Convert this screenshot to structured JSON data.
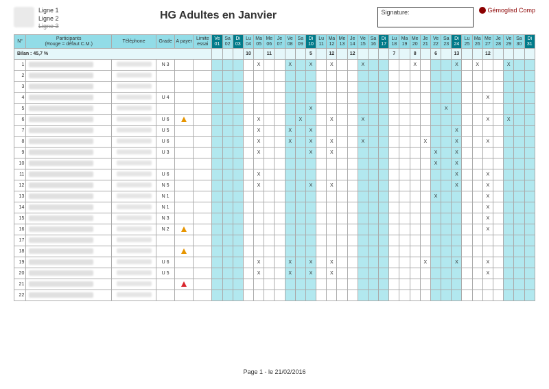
{
  "header": {
    "line1": "Ligne 1",
    "line2": "Ligne 2",
    "line3": "Ligne 3",
    "title": "HG Adultes en Janvier",
    "signature_label": "Signature:",
    "brand": "Gémoglisd Comp",
    "participant_label": "Participants",
    "legend": "(Rouge = défaut C.M.)"
  },
  "columns": {
    "num": "N°",
    "telephone": "Téléphone",
    "grade": "Grade",
    "a_payer": "A payer",
    "limite_essai": "Limite essai"
  },
  "days": [
    {
      "dow": "Ve",
      "num": "01",
      "dark": true
    },
    {
      "dow": "Sa",
      "num": "02",
      "dark": false
    },
    {
      "dow": "Di",
      "num": "03",
      "dark": true
    },
    {
      "dow": "Lu",
      "num": "04",
      "dark": false
    },
    {
      "dow": "Ma",
      "num": "05",
      "dark": false
    },
    {
      "dow": "Me",
      "num": "06",
      "dark": false
    },
    {
      "dow": "Je",
      "num": "07",
      "dark": false
    },
    {
      "dow": "Ve",
      "num": "08",
      "dark": false
    },
    {
      "dow": "Sa",
      "num": "09",
      "dark": false
    },
    {
      "dow": "Di",
      "num": "10",
      "dark": true
    },
    {
      "dow": "Lu",
      "num": "11",
      "dark": false
    },
    {
      "dow": "Ma",
      "num": "12",
      "dark": false
    },
    {
      "dow": "Me",
      "num": "13",
      "dark": false
    },
    {
      "dow": "Je",
      "num": "14",
      "dark": false
    },
    {
      "dow": "Ve",
      "num": "15",
      "dark": false
    },
    {
      "dow": "Sa",
      "num": "16",
      "dark": false
    },
    {
      "dow": "Di",
      "num": "17",
      "dark": true
    },
    {
      "dow": "Lu",
      "num": "18",
      "dark": false
    },
    {
      "dow": "Ma",
      "num": "19",
      "dark": false
    },
    {
      "dow": "Me",
      "num": "20",
      "dark": false
    },
    {
      "dow": "Je",
      "num": "21",
      "dark": false
    },
    {
      "dow": "Ve",
      "num": "22",
      "dark": false
    },
    {
      "dow": "Sa",
      "num": "23",
      "dark": false
    },
    {
      "dow": "Di",
      "num": "24",
      "dark": true
    },
    {
      "dow": "Lu",
      "num": "25",
      "dark": false
    },
    {
      "dow": "Ma",
      "num": "26",
      "dark": false
    },
    {
      "dow": "Me",
      "num": "27",
      "dark": false
    },
    {
      "dow": "Je",
      "num": "28",
      "dark": false
    },
    {
      "dow": "Ve",
      "num": "29",
      "dark": false
    },
    {
      "dow": "Sa",
      "num": "30",
      "dark": false
    },
    {
      "dow": "Di",
      "num": "31",
      "dark": true
    }
  ],
  "bilan_label": "Bilan : 45,7 %",
  "bilan_totals": {
    "3": "10",
    "5": "11",
    "9": "5",
    "11": "12",
    "13": "12",
    "17": "7",
    "19": "8",
    "21": "6",
    "23": "13",
    "26": "12"
  },
  "rows": [
    {
      "n": 1,
      "grade": "N 3",
      "pay": "",
      "marks": [
        4,
        7,
        9,
        11,
        14,
        19,
        23,
        25,
        28
      ]
    },
    {
      "n": 2,
      "grade": "",
      "pay": "",
      "marks": []
    },
    {
      "n": 3,
      "grade": "",
      "pay": "",
      "marks": []
    },
    {
      "n": 4,
      "grade": "U 4",
      "pay": "",
      "marks": [
        26
      ]
    },
    {
      "n": 5,
      "grade": "",
      "pay": "",
      "marks": [
        9,
        22
      ]
    },
    {
      "n": 6,
      "grade": "U 6",
      "pay": "warn",
      "marks": [
        4,
        8,
        11,
        14,
        26,
        28
      ]
    },
    {
      "n": 7,
      "grade": "U 5",
      "pay": "",
      "marks": [
        4,
        7,
        9,
        23
      ]
    },
    {
      "n": 8,
      "grade": "U 6",
      "pay": "",
      "marks": [
        4,
        7,
        9,
        11,
        14,
        20,
        23,
        26
      ]
    },
    {
      "n": 9,
      "grade": "U 3",
      "pay": "",
      "marks": [
        4,
        9,
        11,
        21,
        23
      ]
    },
    {
      "n": 10,
      "grade": "",
      "pay": "",
      "marks": [
        21,
        23
      ]
    },
    {
      "n": 11,
      "grade": "U 6",
      "pay": "",
      "marks": [
        4,
        23,
        26
      ]
    },
    {
      "n": 12,
      "grade": "N 5",
      "pay": "",
      "marks": [
        4,
        9,
        11,
        23,
        26
      ]
    },
    {
      "n": 13,
      "grade": "N 1",
      "pay": "",
      "marks": [
        21,
        26
      ]
    },
    {
      "n": 14,
      "grade": "N 1",
      "pay": "",
      "marks": [
        26
      ]
    },
    {
      "n": 15,
      "grade": "N 3",
      "pay": "",
      "marks": [
        26
      ]
    },
    {
      "n": 16,
      "grade": "N 2",
      "pay": "warn",
      "marks": [
        26
      ]
    },
    {
      "n": 17,
      "grade": "",
      "pay": "",
      "marks": []
    },
    {
      "n": 18,
      "grade": "",
      "pay": "warn",
      "marks": []
    },
    {
      "n": 19,
      "grade": "U 6",
      "pay": "",
      "marks": [
        4,
        7,
        9,
        11,
        20,
        23,
        26
      ]
    },
    {
      "n": 20,
      "grade": "U 5",
      "pay": "",
      "marks": [
        4,
        7,
        9,
        11,
        26
      ]
    },
    {
      "n": 21,
      "grade": "",
      "pay": "alert",
      "marks": []
    },
    {
      "n": 22,
      "grade": "",
      "pay": "",
      "marks": []
    }
  ],
  "teal_cols": [
    0,
    1,
    2,
    7,
    8,
    9,
    14,
    15,
    16,
    21,
    22,
    23,
    28,
    29,
    30
  ],
  "footer": "Page 1  - le 21/02/2016",
  "colors": {
    "header_bg": "#92dce7",
    "header_dark_bg": "#007b8a",
    "teal_light": "#b2e8ef",
    "border": "#aaaaaa",
    "text": "#333333"
  }
}
